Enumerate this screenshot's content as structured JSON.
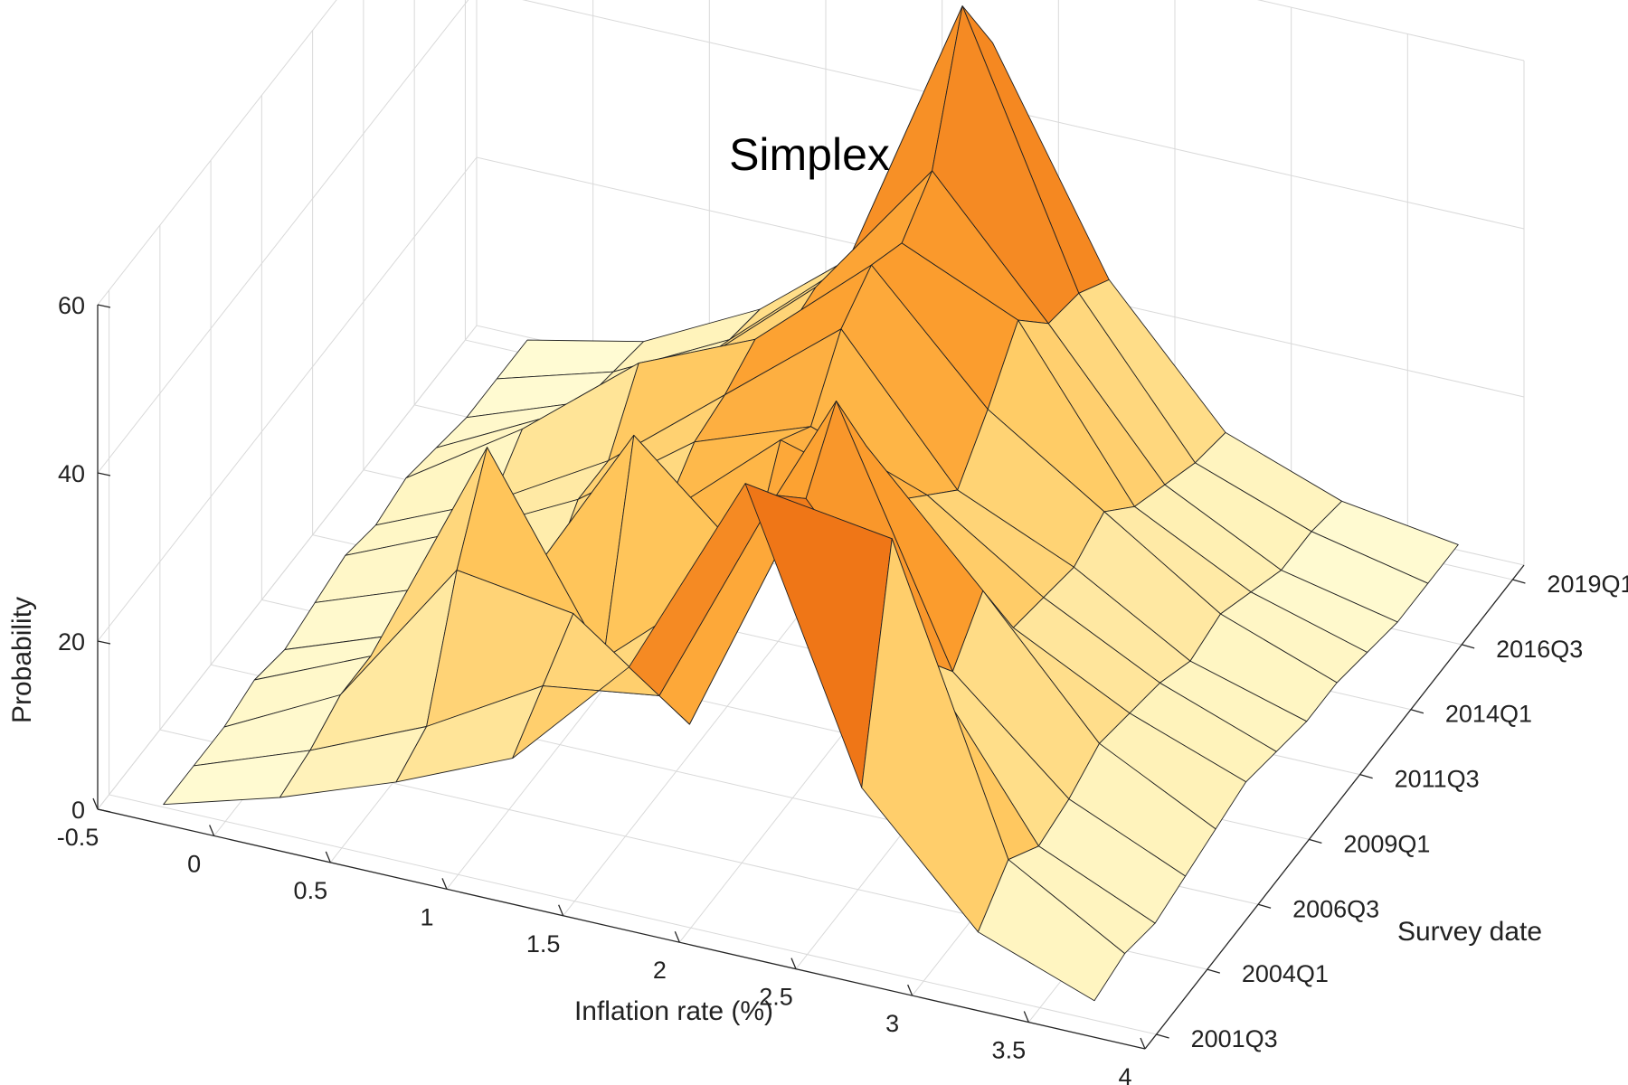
{
  "chart_data": {
    "type": "surface",
    "title": "Simplex",
    "xlabel": "Inflation rate (%)",
    "ylabel": "Survey date",
    "zlabel": "Probability",
    "x_ticks": [
      "-0.5",
      "0",
      "0.5",
      "1",
      "1.5",
      "2",
      "2.5",
      "3",
      "3.5",
      "4"
    ],
    "y_ticks": [
      "2001Q3",
      "2004Q1",
      "2006Q3",
      "2009Q1",
      "2011Q3",
      "2014Q1",
      "2016Q3",
      "2019Q1"
    ],
    "z_ticks": [
      "0",
      "20",
      "40",
      "60"
    ],
    "xlim": [
      -0.5,
      4
    ],
    "zlim": [
      0,
      60
    ],
    "grid": true,
    "colormap": [
      "#ffffe0",
      "#fff2b8",
      "#ffde8a",
      "#ffc356",
      "#fca030",
      "#f07818",
      "#d45008",
      "#8a2c04"
    ],
    "x": [
      -0.25,
      0.25,
      0.75,
      1.25,
      1.75,
      2.25,
      2.75,
      3.25,
      3.75
    ],
    "dates": [
      "2001Q3",
      "2003Q1",
      "2004Q3",
      "2006Q1",
      "2007Q3",
      "2009Q1",
      "2010Q3",
      "2012Q1",
      "2013Q3",
      "2015Q1",
      "2016Q3",
      "2018Q1",
      "2019Q3"
    ],
    "probability": [
      [
        1,
        5,
        10,
        16,
        30,
        55,
        22,
        8,
        3
      ],
      [
        1,
        6,
        12,
        20,
        22,
        49,
        47,
        12,
        4
      ],
      [
        1,
        8,
        26,
        24,
        14,
        44,
        28,
        9,
        3
      ],
      [
        2,
        8,
        36,
        14,
        26,
        51,
        22,
        10,
        4
      ],
      [
        1,
        6,
        14,
        36,
        24,
        41,
        27,
        12,
        5
      ],
      [
        2,
        7,
        11,
        22,
        34,
        30,
        18,
        11,
        6
      ],
      [
        3,
        9,
        16,
        26,
        31,
        26,
        17,
        10,
        5
      ],
      [
        2,
        8,
        16,
        27,
        38,
        22,
        16,
        8,
        4
      ],
      [
        3,
        12,
        23,
        29,
        41,
        27,
        18,
        9,
        4
      ],
      [
        2,
        9,
        16,
        25,
        39,
        33,
        14,
        7,
        3
      ],
      [
        1,
        6,
        14,
        26,
        43,
        28,
        12,
        5,
        2
      ],
      [
        1,
        5,
        12,
        24,
        58,
        27,
        10,
        5,
        2
      ],
      [
        1,
        4,
        11,
        22,
        49,
        24,
        9,
        4,
        2
      ]
    ]
  }
}
